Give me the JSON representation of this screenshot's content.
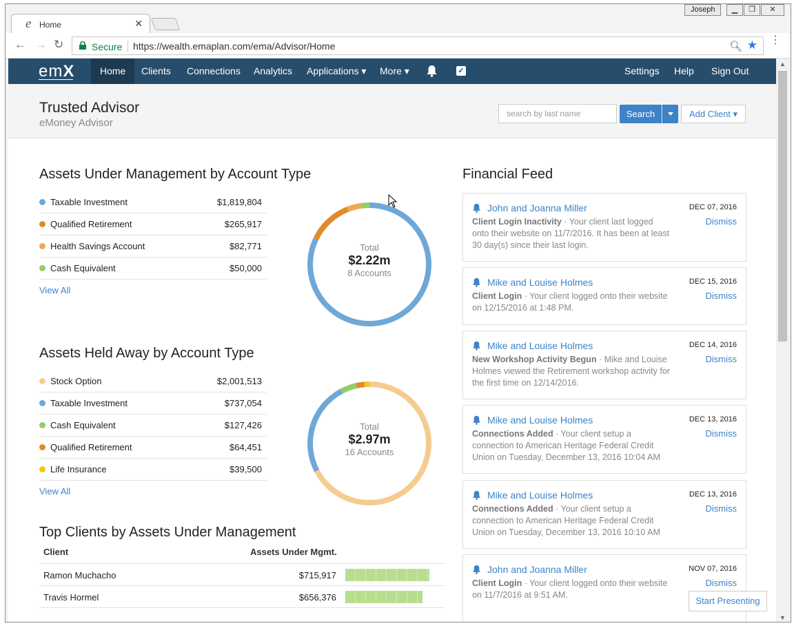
{
  "browser": {
    "tab_title": "Home",
    "user_label": "Joseph",
    "secure_label": "Secure",
    "url": "https://wealth.emaplan.com/ema/Advisor/Home"
  },
  "nav": {
    "logo_prefix": "em",
    "logo_suffix": "X",
    "items": [
      {
        "label": "Home"
      },
      {
        "label": "Clients"
      },
      {
        "label": "Connections"
      },
      {
        "label": "Analytics"
      },
      {
        "label": "Applications ▾"
      },
      {
        "label": "More ▾"
      }
    ],
    "right_items": [
      {
        "label": "Settings"
      },
      {
        "label": "Help"
      },
      {
        "label": "Sign Out"
      }
    ]
  },
  "header": {
    "title": "Trusted Advisor",
    "subtitle": "eMoney Advisor",
    "search_placeholder": "search by last name",
    "search_button": "Search",
    "add_client": "Add Client ▾"
  },
  "aum": {
    "title": "Assets Under Management by Account Type",
    "items": [
      {
        "label": "Taxable Investment",
        "value": "$1,819,804",
        "color": "#6fa8d6"
      },
      {
        "label": "Qualified Retirement",
        "value": "$265,917",
        "color": "#e08b2b"
      },
      {
        "label": "Health Savings Account",
        "value": "$82,771",
        "color": "#f0a852"
      },
      {
        "label": "Cash Equivalent",
        "value": "$50,000",
        "color": "#93cc6a"
      }
    ],
    "view_all": "View All",
    "total_label": "Total",
    "total": "$2.22m",
    "accounts": "8 Accounts"
  },
  "held": {
    "title": "Assets Held Away by Account Type",
    "items": [
      {
        "label": "Stock Option",
        "value": "$2,001,513",
        "color": "#f5cc8f"
      },
      {
        "label": "Taxable Investment",
        "value": "$737,054",
        "color": "#6fa8d6"
      },
      {
        "label": "Cash Equivalent",
        "value": "$127,426",
        "color": "#93cc6a"
      },
      {
        "label": "Qualified Retirement",
        "value": "$64,451",
        "color": "#e08b2b"
      },
      {
        "label": "Life Insurance",
        "value": "$39,500",
        "color": "#f5c518"
      }
    ],
    "view_all": "View All",
    "total_label": "Total",
    "total": "$2.97m",
    "accounts": "16 Accounts"
  },
  "top_clients": {
    "title": "Top Clients by Assets Under Management",
    "col_client": "Client",
    "col_assets": "Assets Under Mgmt.",
    "rows": [
      {
        "name": "Ramon Muchacho",
        "amount": "$715,917",
        "share": 1.0
      },
      {
        "name": "Travis Hormel",
        "amount": "$656,376",
        "share": 0.917
      }
    ]
  },
  "feed": {
    "title": "Financial Feed",
    "dismiss": "Dismiss",
    "items": [
      {
        "name": "John and Joanna Miller",
        "date": "DEC 07, 2016",
        "type": "Client Login Inactivity",
        "text": " · Your client last logged onto their website on 11/7/2016. It has been at least 30 day(s) since their last login."
      },
      {
        "name": "Mike and Louise Holmes",
        "date": "DEC 15, 2016",
        "type": "Client Login",
        "text": " · Your client logged onto their website on 12/15/2016 at 1:48 PM."
      },
      {
        "name": "Mike and Louise Holmes",
        "date": "DEC 14, 2016",
        "type": "New Workshop Activity Begun",
        "text": " · Mike and Louise Holmes viewed the Retirement workshop activity for the first time on 12/14/2016."
      },
      {
        "name": "Mike and Louise Holmes",
        "date": "DEC 13, 2016",
        "type": "Connections Added",
        "text": " · Your client setup a connection to American Heritage Federal Credit Union on Tuesday, December 13, 2016 10:04 AM"
      },
      {
        "name": "Mike and Louise Holmes",
        "date": "DEC 13, 2016",
        "type": "Connections Added",
        "text": " · Your client setup a connection to American Heritage Federal Credit Union on Tuesday, December 13, 2016 10:10 AM"
      },
      {
        "name": "John and Joanna Miller",
        "date": "NOV 07, 2016",
        "type": "Client Login",
        "text": " · Your client logged onto their website on 11/7/2016 at 9:51 AM."
      }
    ],
    "start_presenting": "Start Presenting"
  }
}
